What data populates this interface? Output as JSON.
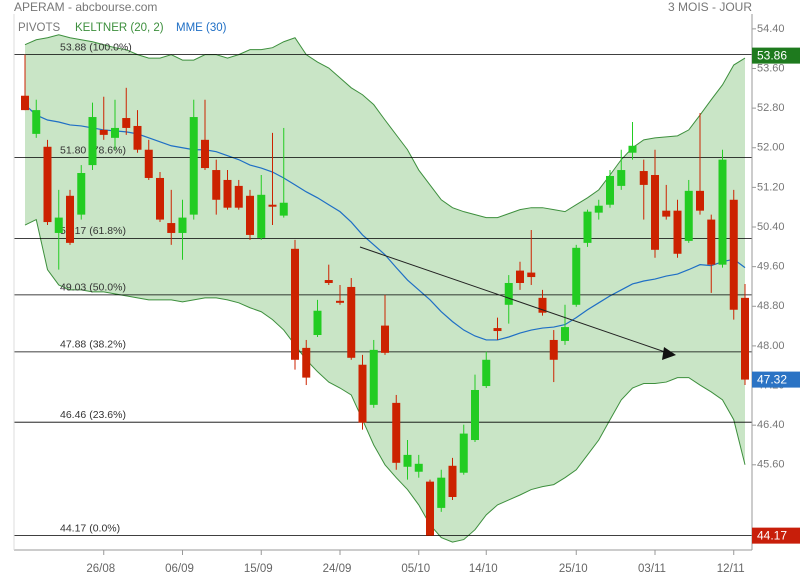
{
  "chart_data": {
    "type": "candlestick",
    "title": "APERAM - abcbourse.com",
    "subtitle": "3 MOIS - JOUR",
    "categories": [
      null,
      null,
      null,
      null,
      null,
      null,
      null,
      "26/08",
      null,
      null,
      null,
      null,
      null,
      null,
      "06/09",
      null,
      null,
      null,
      null,
      null,
      null,
      "15/09",
      null,
      null,
      null,
      null,
      null,
      null,
      "24/09",
      null,
      null,
      null,
      null,
      null,
      null,
      "05/10",
      null,
      null,
      null,
      null,
      null,
      "14/10",
      null,
      null,
      null,
      null,
      null,
      null,
      null,
      "25/10",
      null,
      null,
      null,
      null,
      null,
      null,
      "03/11",
      null,
      null,
      null,
      null,
      null,
      null,
      "12/11",
      null
    ],
    "open": [
      53.05,
      52.28,
      52.02,
      50.28,
      51.03,
      50.65,
      51.65,
      52.36,
      52.2,
      52.6,
      52.44,
      51.96,
      51.39,
      50.48,
      50.28,
      50.65,
      52.16,
      51.55,
      51.35,
      51.23,
      51.03,
      50.18,
      50.85,
      50.63,
      49.96,
      47.96,
      48.22,
      49.33,
      48.91,
      49.19,
      47.62,
      46.81,
      48.41,
      46.85,
      45.56,
      45.46,
      45.26,
      44.73,
      45.58,
      45.44,
      46.1,
      47.19,
      48.36,
      48.83,
      49.52,
      49.48,
      48.97,
      48.12,
      48.1,
      48.83,
      50.08,
      50.69,
      50.85,
      51.23,
      51.9,
      51.53,
      51.45,
      50.73,
      50.73,
      50.12,
      51.13,
      50.55,
      49.64,
      50.95,
      48.97
    ],
    "high": [
      53.88,
      52.97,
      52.16,
      51.15,
      51.15,
      51.65,
      52.91,
      53.03,
      52.97,
      53.21,
      52.76,
      52.16,
      51.51,
      51.15,
      50.95,
      52.97,
      52.97,
      51.76,
      51.55,
      51.35,
      51.15,
      51.45,
      52.3,
      52.4,
      50.14,
      48.12,
      48.93,
      49.64,
      49.23,
      49.37,
      47.82,
      48.12,
      49.03,
      47.01,
      46.1,
      45.8,
      45.3,
      45.5,
      45.74,
      46.41,
      47.42,
      47.88,
      48.57,
      49.43,
      49.7,
      50.34,
      49.13,
      48.32,
      48.83,
      50.04,
      50.75,
      50.95,
      51.55,
      51.96,
      52.52,
      51.76,
      51.96,
      51.25,
      50.95,
      51.35,
      52.7,
      50.65,
      51.96,
      51.15,
      49.25
    ],
    "low": [
      52.76,
      52.2,
      50.44,
      49.54,
      50.04,
      50.55,
      51.55,
      52.16,
      51.96,
      52.26,
      51.9,
      51.35,
      50.5,
      50.04,
      49.74,
      50.55,
      51.55,
      50.65,
      50.75,
      50.75,
      50.14,
      50.14,
      50.44,
      50.59,
      47.52,
      47.21,
      48.18,
      49.23,
      48.83,
      47.72,
      46.31,
      46.75,
      47.82,
      45.5,
      45.3,
      45.34,
      44.17,
      44.65,
      44.89,
      45.4,
      46.06,
      47.15,
      48.12,
      48.45,
      49.13,
      49.23,
      48.61,
      47.27,
      48.02,
      48.79,
      50.0,
      50.55,
      50.79,
      51.15,
      51.76,
      50.55,
      49.78,
      50.55,
      49.78,
      50.08,
      50.65,
      49.07,
      49.58,
      48.53,
      47.21
    ],
    "close": [
      52.76,
      52.76,
      50.5,
      50.59,
      50.08,
      51.49,
      52.62,
      52.26,
      52.4,
      52.4,
      51.96,
      51.39,
      50.55,
      50.28,
      50.59,
      52.62,
      51.59,
      50.95,
      50.79,
      50.79,
      50.24,
      51.05,
      50.81,
      50.89,
      47.72,
      47.36,
      48.71,
      49.27,
      48.87,
      47.76,
      46.45,
      47.92,
      47.86,
      45.64,
      45.8,
      45.62,
      44.17,
      45.34,
      44.95,
      46.23,
      47.11,
      47.72,
      48.3,
      49.27,
      49.27,
      49.39,
      48.67,
      47.72,
      48.38,
      49.98,
      50.71,
      50.83,
      51.43,
      51.55,
      52.04,
      51.25,
      49.94,
      50.61,
      49.86,
      51.13,
      50.73,
      49.64,
      51.76,
      48.73,
      47.32
    ],
    "up_color": "#22cc22",
    "down_color": "#cc2200",
    "overlays": [
      {
        "name": "KELTNER (20, 2)",
        "color": "#3d8f3d",
        "fill": "#c9e5c6",
        "upper": [
          54.08,
          54.18,
          54.22,
          54.28,
          54.22,
          54.18,
          54.14,
          54.08,
          54.02,
          53.98,
          53.88,
          53.81,
          53.81,
          53.88,
          53.77,
          53.77,
          53.88,
          53.88,
          53.81,
          53.88,
          53.98,
          53.98,
          54.02,
          54.14,
          54.22,
          53.88,
          53.73,
          53.61,
          53.41,
          53.21,
          53.07,
          52.87,
          52.56,
          52.26,
          51.96,
          51.55,
          51.25,
          50.95,
          50.79,
          50.71,
          50.65,
          50.59,
          50.59,
          50.67,
          50.75,
          50.79,
          50.79,
          50.75,
          50.71,
          50.85,
          50.99,
          51.15,
          51.45,
          51.76,
          52.0,
          52.16,
          52.2,
          52.22,
          52.24,
          52.36,
          52.66,
          52.97,
          53.27,
          53.67,
          53.81
        ],
        "lower": [
          50.44,
          50.55,
          49.54,
          49.23,
          49.13,
          49.13,
          49.09,
          49.09,
          49.05,
          49.01,
          48.97,
          48.93,
          48.93,
          48.93,
          48.89,
          48.93,
          48.97,
          48.97,
          48.93,
          48.87,
          48.77,
          48.69,
          48.53,
          48.32,
          48.02,
          47.72,
          47.48,
          47.27,
          47.15,
          47.01,
          46.51,
          46.0,
          45.6,
          45.34,
          45.1,
          44.79,
          44.39,
          44.13,
          44.04,
          44.09,
          44.29,
          44.59,
          44.79,
          44.89,
          44.99,
          45.1,
          45.16,
          45.2,
          45.34,
          45.5,
          45.8,
          46.1,
          46.51,
          46.91,
          47.15,
          47.24,
          47.24,
          47.27,
          47.36,
          47.36,
          47.21,
          47.07,
          46.91,
          46.51,
          45.6
        ]
      },
      {
        "name": "MME (30)",
        "color": "#1f6fc5",
        "values": [
          52.87,
          52.66,
          52.56,
          52.52,
          52.46,
          52.44,
          52.4,
          52.36,
          52.34,
          52.32,
          52.28,
          52.2,
          52.12,
          52.04,
          52.0,
          51.96,
          51.96,
          51.92,
          51.84,
          51.76,
          51.65,
          51.59,
          51.51,
          51.39,
          51.25,
          51.11,
          50.99,
          50.85,
          50.71,
          50.5,
          50.24,
          50.04,
          49.84,
          49.58,
          49.33,
          49.13,
          48.93,
          48.69,
          48.49,
          48.32,
          48.2,
          48.12,
          48.12,
          48.18,
          48.26,
          48.32,
          48.36,
          48.38,
          48.43,
          48.57,
          48.73,
          48.87,
          49.01,
          49.13,
          49.25,
          49.31,
          49.35,
          49.41,
          49.45,
          49.54,
          49.64,
          49.62,
          49.7,
          49.75,
          49.58
        ]
      }
    ],
    "pivots": {
      "name": "PIVOTS",
      "color": "#000000",
      "levels": [
        {
          "value": 53.88,
          "label": "53.88 (100.0%)"
        },
        {
          "value": 51.8,
          "label": "51.80 (78.6%)"
        },
        {
          "value": 50.17,
          "label": "50.17 (61.8%)"
        },
        {
          "value": 49.03,
          "label": "49.03 (50.0%)"
        },
        {
          "value": 47.88,
          "label": "47.88 (38.2%)"
        },
        {
          "value": 46.46,
          "label": "46.46 (23.6%)"
        },
        {
          "value": 44.17,
          "label": "44.17 (0.0%)"
        }
      ]
    },
    "badges": [
      {
        "value": 53.86,
        "color": "#1e7a1e"
      },
      {
        "value": 47.32,
        "color": "#2b73c4"
      },
      {
        "value": 44.17,
        "color": "#c81e0a"
      }
    ],
    "ylim": [
      43.88,
      54.7
    ],
    "yticks": [
      {
        "value": 45.6,
        "label": "45.60"
      },
      {
        "value": 46.4,
        "label": "46.40"
      },
      {
        "value": 47.2,
        "label": "47.20"
      },
      {
        "value": 48.0,
        "label": "48.00"
      },
      {
        "value": 48.8,
        "label": "48.80"
      },
      {
        "value": 49.6,
        "label": "49.60"
      },
      {
        "value": 50.4,
        "label": "50.40"
      },
      {
        "value": 51.2,
        "label": "51.20"
      },
      {
        "value": 52.0,
        "label": "52.00"
      },
      {
        "value": 52.8,
        "label": "52.80"
      },
      {
        "value": 53.6,
        "label": "53.60"
      },
      {
        "value": 54.4,
        "label": "54.40"
      }
    ]
  }
}
